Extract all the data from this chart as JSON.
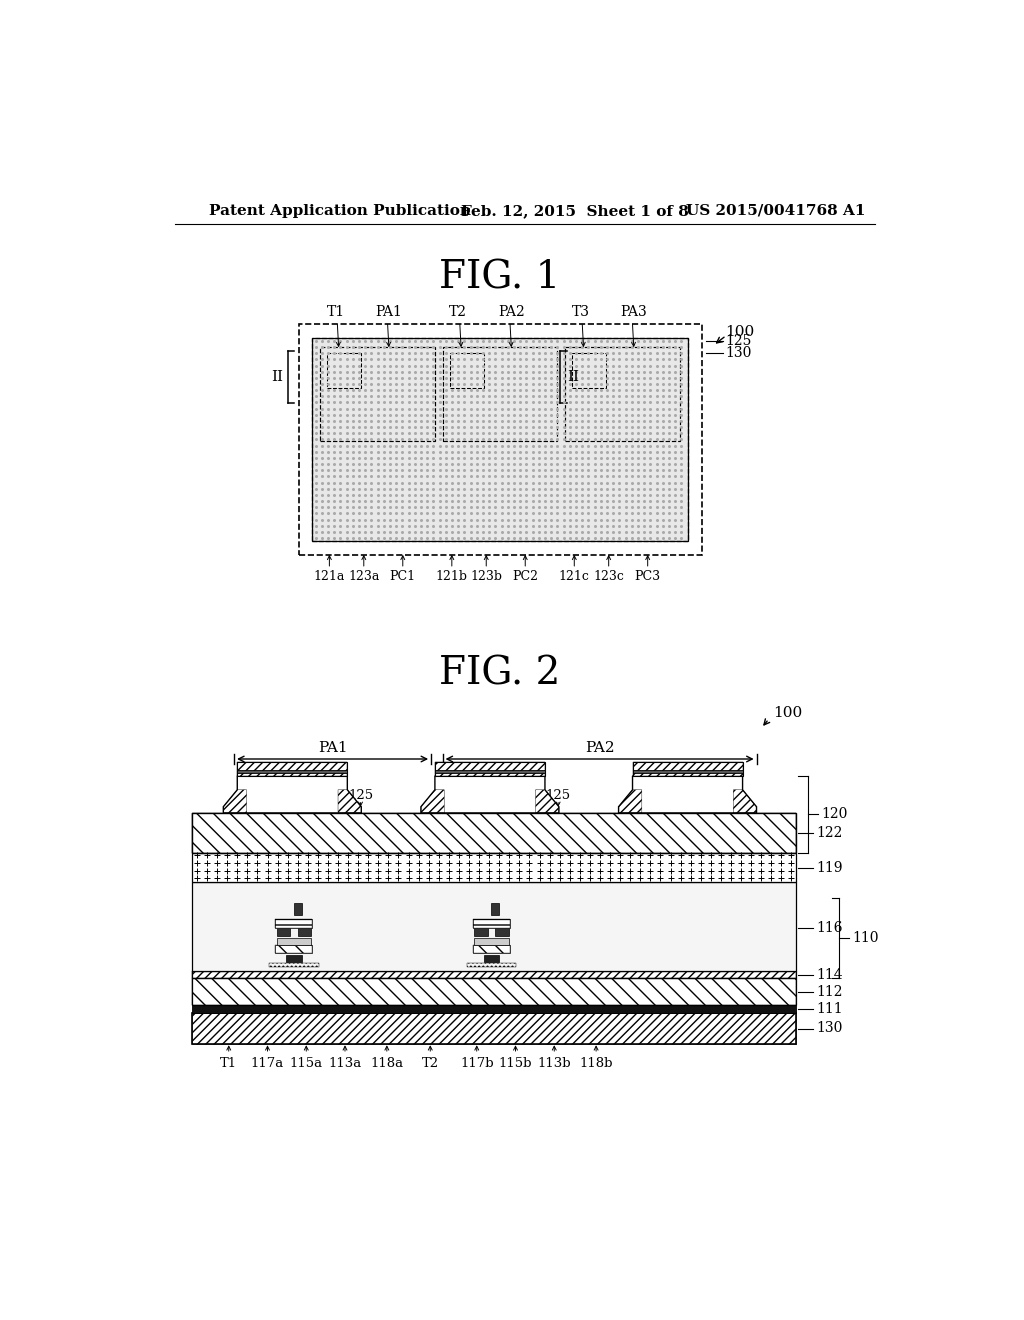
{
  "bg_color": "#ffffff",
  "header_left": "Patent Application Publication",
  "header_mid": "Feb. 12, 2015  Sheet 1 of 8",
  "header_right": "US 2015/0041768 A1",
  "fig1_title": "FIG. 1",
  "fig2_title": "FIG. 2"
}
